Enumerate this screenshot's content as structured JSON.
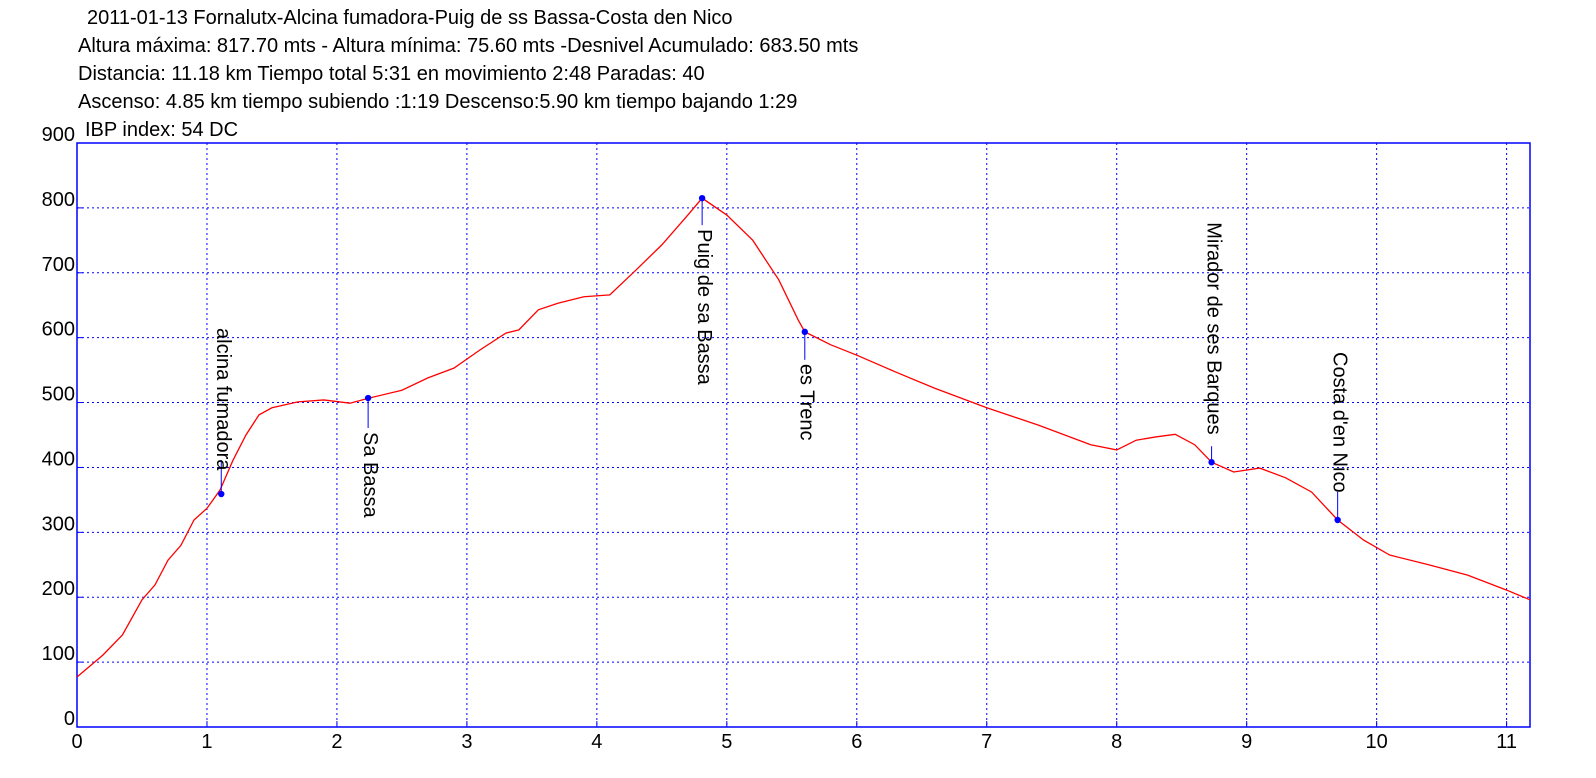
{
  "chart_data": {
    "type": "line",
    "title": "2011-01-13 Fornalutx-Alcina fumadora-Puig de ss Bassa-Costa den Nico",
    "subtitle": [
      "Altura máxima: 817.70 mts - Altura mínima: 75.60 mts -Desnivel Acumulado: 683.50 mts",
      "Distancia: 11.18 km  Tiempo total 5:31  en movimiento 2:48 Paradas: 40",
      "Ascenso: 4.85 km  tiempo subiendo :1:19  Descenso:5.90 km tiempo bajando 1:29",
      "IBP index: 54 DC"
    ],
    "x": [
      0,
      0.2,
      0.35,
      0.5,
      0.6,
      0.7,
      0.8,
      0.9,
      1.0,
      1.1,
      1.2,
      1.3,
      1.4,
      1.5,
      1.7,
      1.9,
      2.1,
      2.25,
      2.5,
      2.7,
      2.9,
      3.1,
      3.3,
      3.4,
      3.55,
      3.7,
      3.9,
      4.1,
      4.3,
      4.5,
      4.7,
      4.81,
      5.0,
      5.2,
      5.4,
      5.55,
      5.6,
      5.8,
      6.0,
      6.3,
      6.6,
      7.0,
      7.4,
      7.8,
      8.0,
      8.15,
      8.3,
      8.45,
      8.6,
      8.73,
      8.9,
      9.1,
      9.3,
      9.5,
      9.7,
      9.9,
      10.1,
      10.4,
      10.7,
      11.0,
      11.18
    ],
    "series": [
      {
        "name": "Altura",
        "color": "#ff0000",
        "values": [
          77,
          111,
          142,
          196,
          219,
          257,
          280,
          319,
          337,
          365,
          411,
          450,
          481,
          492,
          501,
          504,
          499,
          507,
          519,
          538,
          553,
          581,
          607,
          612,
          643,
          653,
          663,
          666,
          704,
          743,
          789,
          815,
          789,
          750,
          689,
          627,
          609,
          589,
          573,
          547,
          522,
          492,
          465,
          435,
          427,
          442,
          447,
          451,
          435,
          408,
          393,
          399,
          384,
          362,
          319,
          288,
          265,
          250,
          234,
          211,
          196
        ]
      }
    ],
    "annotations": [
      {
        "text": "alcina fumadora",
        "x": 1.11,
        "y": 359
      },
      {
        "text": "Sa Bassa",
        "x": 2.24,
        "y": 507
      },
      {
        "text": "Puig de sa Bassa",
        "x": 4.81,
        "y": 815
      },
      {
        "text": "es Trenc",
        "x": 5.6,
        "y": 609
      },
      {
        "text": "Mirador de ses Barques",
        "x": 8.73,
        "y": 408
      },
      {
        "text": "Costa d'en Nico",
        "x": 9.7,
        "y": 319
      }
    ],
    "annotation_color": "#0000ff",
    "axis_color": "#0000ff",
    "xlim": [
      0,
      11.18
    ],
    "ylim": [
      0,
      900
    ],
    "xticks": [
      0,
      1,
      2,
      3,
      4,
      5,
      6,
      7,
      8,
      9,
      10,
      11
    ],
    "yticks": [
      0,
      100,
      200,
      300,
      400,
      500,
      600,
      700,
      800,
      900
    ],
    "grid": true
  }
}
